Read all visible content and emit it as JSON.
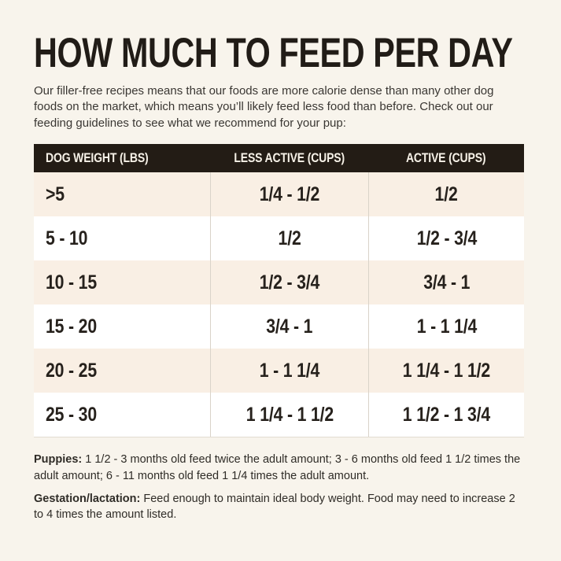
{
  "page": {
    "title": "HOW MUCH TO FEED PER DAY",
    "intro": "Our filler-free recipes means that our foods are more calorie dense than many other dog foods on the market, which means you’ll likely feed less food than before. Check out our feeding guidelines to see what we recommend for your pup:"
  },
  "table": {
    "columns": [
      "DOG WEIGHT (LBS)",
      "LESS ACTIVE (CUPS)",
      "ACTIVE (CUPS)"
    ],
    "rows": [
      [
        ">5",
        "1/4 - 1/2",
        "1/2"
      ],
      [
        "5 - 10",
        "1/2",
        "1/2 - 3/4"
      ],
      [
        "10 - 15",
        "1/2 - 3/4",
        "3/4 - 1"
      ],
      [
        "15 - 20",
        "3/4 - 1",
        "1 - 1 1/4"
      ],
      [
        "20 - 25",
        "1 - 1 1/4",
        "1 1/4 - 1 1/2"
      ],
      [
        "25 - 30",
        "1 1/4 - 1 1/2",
        "1 1/2 - 1 3/4"
      ]
    ]
  },
  "notes": [
    {
      "label": "Puppies:",
      "text": "1 1/2 - 3 months old feed twice the adult amount; 3 - 6 months old feed 1 1/2 times the adult amount; 6 - 11 months old feed 1 1/4 times the adult amount."
    },
    {
      "label": "Gestation/lactation:",
      "text": "Feed enough to maintain ideal body weight. Food may need to increase 2 to 4 times the amount listed."
    }
  ],
  "colors": {
    "page_bg": "#f8f4ec",
    "header_bg": "#231c15",
    "header_text": "#f6f1e7",
    "row_alt_bg": "#f9efe4",
    "row_bg": "#ffffff",
    "divider": "#d9d3c9",
    "title_color": "#211c17",
    "body_text": "#3a3733",
    "cell_text": "#26211c",
    "note_text": "#2f2c27"
  }
}
